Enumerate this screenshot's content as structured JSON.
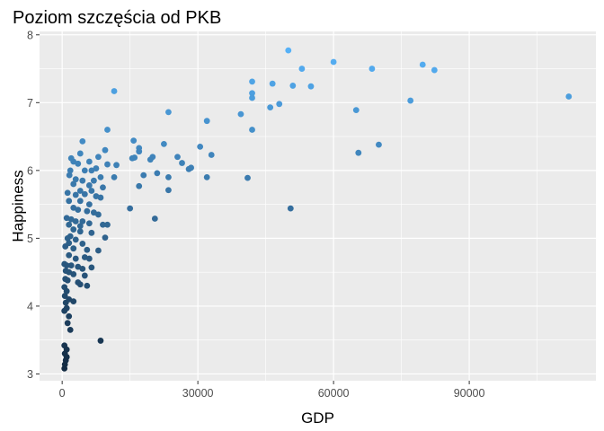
{
  "chart_data": {
    "type": "scatter",
    "title": "Poziom szczęścia od PKB",
    "xlabel": "GDP",
    "ylabel": "Happiness",
    "xlim": [
      -5000,
      118000
    ],
    "ylim": [
      2.9,
      8.05
    ],
    "x_ticks": [
      0,
      30000,
      60000,
      90000
    ],
    "x_tick_labels": [
      "0",
      "30000",
      "60000",
      "90000"
    ],
    "y_ticks": [
      3,
      4,
      5,
      6,
      7,
      8
    ],
    "y_tick_labels": [
      "3",
      "4",
      "5",
      "6",
      "7",
      "8"
    ],
    "grid": true,
    "legend": "none",
    "colors": {
      "panel_background": "#ebebeb",
      "grid": "#ffffff",
      "point_low": "#132b43",
      "point_high": "#56b1f7"
    },
    "points": [
      [
        50000,
        7.77
      ],
      [
        60000,
        7.6
      ],
      [
        53000,
        7.5
      ],
      [
        68500,
        7.5
      ],
      [
        79700,
        7.56
      ],
      [
        82300,
        7.48
      ],
      [
        42000,
        7.31
      ],
      [
        51000,
        7.25
      ],
      [
        55000,
        7.24
      ],
      [
        11500,
        7.17
      ],
      [
        42000,
        7.14
      ],
      [
        42000,
        7.07
      ],
      [
        77000,
        7.03
      ],
      [
        112000,
        7.09
      ],
      [
        48000,
        6.98
      ],
      [
        46000,
        6.93
      ],
      [
        46500,
        7.28
      ],
      [
        23500,
        6.86
      ],
      [
        39500,
        6.83
      ],
      [
        65000,
        6.89
      ],
      [
        32000,
        6.73
      ],
      [
        42000,
        6.6
      ],
      [
        10000,
        6.6
      ],
      [
        70000,
        6.38
      ],
      [
        65500,
        6.26
      ],
      [
        15800,
        6.44
      ],
      [
        22500,
        6.39
      ],
      [
        30500,
        6.35
      ],
      [
        17000,
        6.33
      ],
      [
        17000,
        6.28
      ],
      [
        33000,
        6.23
      ],
      [
        25500,
        6.2
      ],
      [
        20000,
        6.2
      ],
      [
        16000,
        6.19
      ],
      [
        15500,
        6.18
      ],
      [
        19500,
        6.16
      ],
      [
        26500,
        6.11
      ],
      [
        12000,
        6.08
      ],
      [
        10000,
        6.09
      ],
      [
        28500,
        6.04
      ],
      [
        28000,
        6.02
      ],
      [
        21000,
        5.96
      ],
      [
        18000,
        5.93
      ],
      [
        23500,
        5.9
      ],
      [
        41000,
        5.89
      ],
      [
        32000,
        5.9
      ],
      [
        17000,
        5.77
      ],
      [
        23500,
        5.71
      ],
      [
        20500,
        5.29
      ],
      [
        15000,
        5.44
      ],
      [
        50500,
        5.44
      ],
      [
        9500,
        6.3
      ],
      [
        8000,
        6.2
      ],
      [
        6000,
        6.13
      ],
      [
        4500,
        6.43
      ],
      [
        2000,
        6.18
      ],
      [
        2500,
        6.13
      ],
      [
        3500,
        6.1
      ],
      [
        4000,
        6.25
      ],
      [
        7500,
        6.03
      ],
      [
        1800,
        6.0
      ],
      [
        5000,
        6.0
      ],
      [
        6500,
        6.0
      ],
      [
        1600,
        5.93
      ],
      [
        3000,
        5.87
      ],
      [
        4500,
        5.85
      ],
      [
        7000,
        5.85
      ],
      [
        8500,
        5.9
      ],
      [
        11500,
        5.9
      ],
      [
        2500,
        5.8
      ],
      [
        6000,
        5.78
      ],
      [
        9000,
        5.75
      ],
      [
        4000,
        5.7
      ],
      [
        6500,
        5.7
      ],
      [
        1200,
        5.67
      ],
      [
        3000,
        5.64
      ],
      [
        5000,
        5.65
      ],
      [
        7500,
        5.62
      ],
      [
        8500,
        5.6
      ],
      [
        1500,
        5.55
      ],
      [
        4000,
        5.55
      ],
      [
        6000,
        5.5
      ],
      [
        2500,
        5.45
      ],
      [
        3500,
        5.42
      ],
      [
        5500,
        5.4
      ],
      [
        7000,
        5.38
      ],
      [
        8000,
        5.35
      ],
      [
        1000,
        5.3
      ],
      [
        2000,
        5.28
      ],
      [
        3000,
        5.25
      ],
      [
        4500,
        5.25
      ],
      [
        6000,
        5.22
      ],
      [
        1500,
        5.2
      ],
      [
        4000,
        5.18
      ],
      [
        9000,
        5.2
      ],
      [
        10000,
        5.2
      ],
      [
        2500,
        5.13
      ],
      [
        4000,
        5.1
      ],
      [
        6500,
        5.08
      ],
      [
        1800,
        5.03
      ],
      [
        1200,
        5.0
      ],
      [
        3000,
        4.98
      ],
      [
        9500,
        5.01
      ],
      [
        1500,
        4.93
      ],
      [
        4500,
        4.92
      ],
      [
        700,
        4.88
      ],
      [
        2500,
        4.85
      ],
      [
        5500,
        4.83
      ],
      [
        8000,
        4.82
      ],
      [
        1500,
        4.75
      ],
      [
        3000,
        4.7
      ],
      [
        5000,
        4.72
      ],
      [
        6000,
        4.7
      ],
      [
        500,
        4.62
      ],
      [
        1000,
        4.6
      ],
      [
        2000,
        4.6
      ],
      [
        3500,
        4.58
      ],
      [
        4500,
        4.55
      ],
      [
        6500,
        4.57
      ],
      [
        800,
        4.52
      ],
      [
        1500,
        4.5
      ],
      [
        2500,
        4.47
      ],
      [
        5000,
        4.45
      ],
      [
        700,
        4.4
      ],
      [
        1200,
        4.38
      ],
      [
        3500,
        4.35
      ],
      [
        4000,
        4.32
      ],
      [
        5500,
        4.3
      ],
      [
        500,
        4.28
      ],
      [
        1000,
        4.22
      ],
      [
        600,
        4.15
      ],
      [
        1500,
        4.1
      ],
      [
        2500,
        4.07
      ],
      [
        800,
        4.05
      ],
      [
        1000,
        3.97
      ],
      [
        500,
        3.93
      ],
      [
        1500,
        3.85
      ],
      [
        1200,
        3.75
      ],
      [
        1800,
        3.65
      ],
      [
        8500,
        3.49
      ],
      [
        500,
        3.42
      ],
      [
        1000,
        3.36
      ],
      [
        600,
        3.3
      ],
      [
        1000,
        3.25
      ],
      [
        800,
        3.2
      ],
      [
        600,
        3.14
      ],
      [
        500,
        3.08
      ]
    ]
  }
}
